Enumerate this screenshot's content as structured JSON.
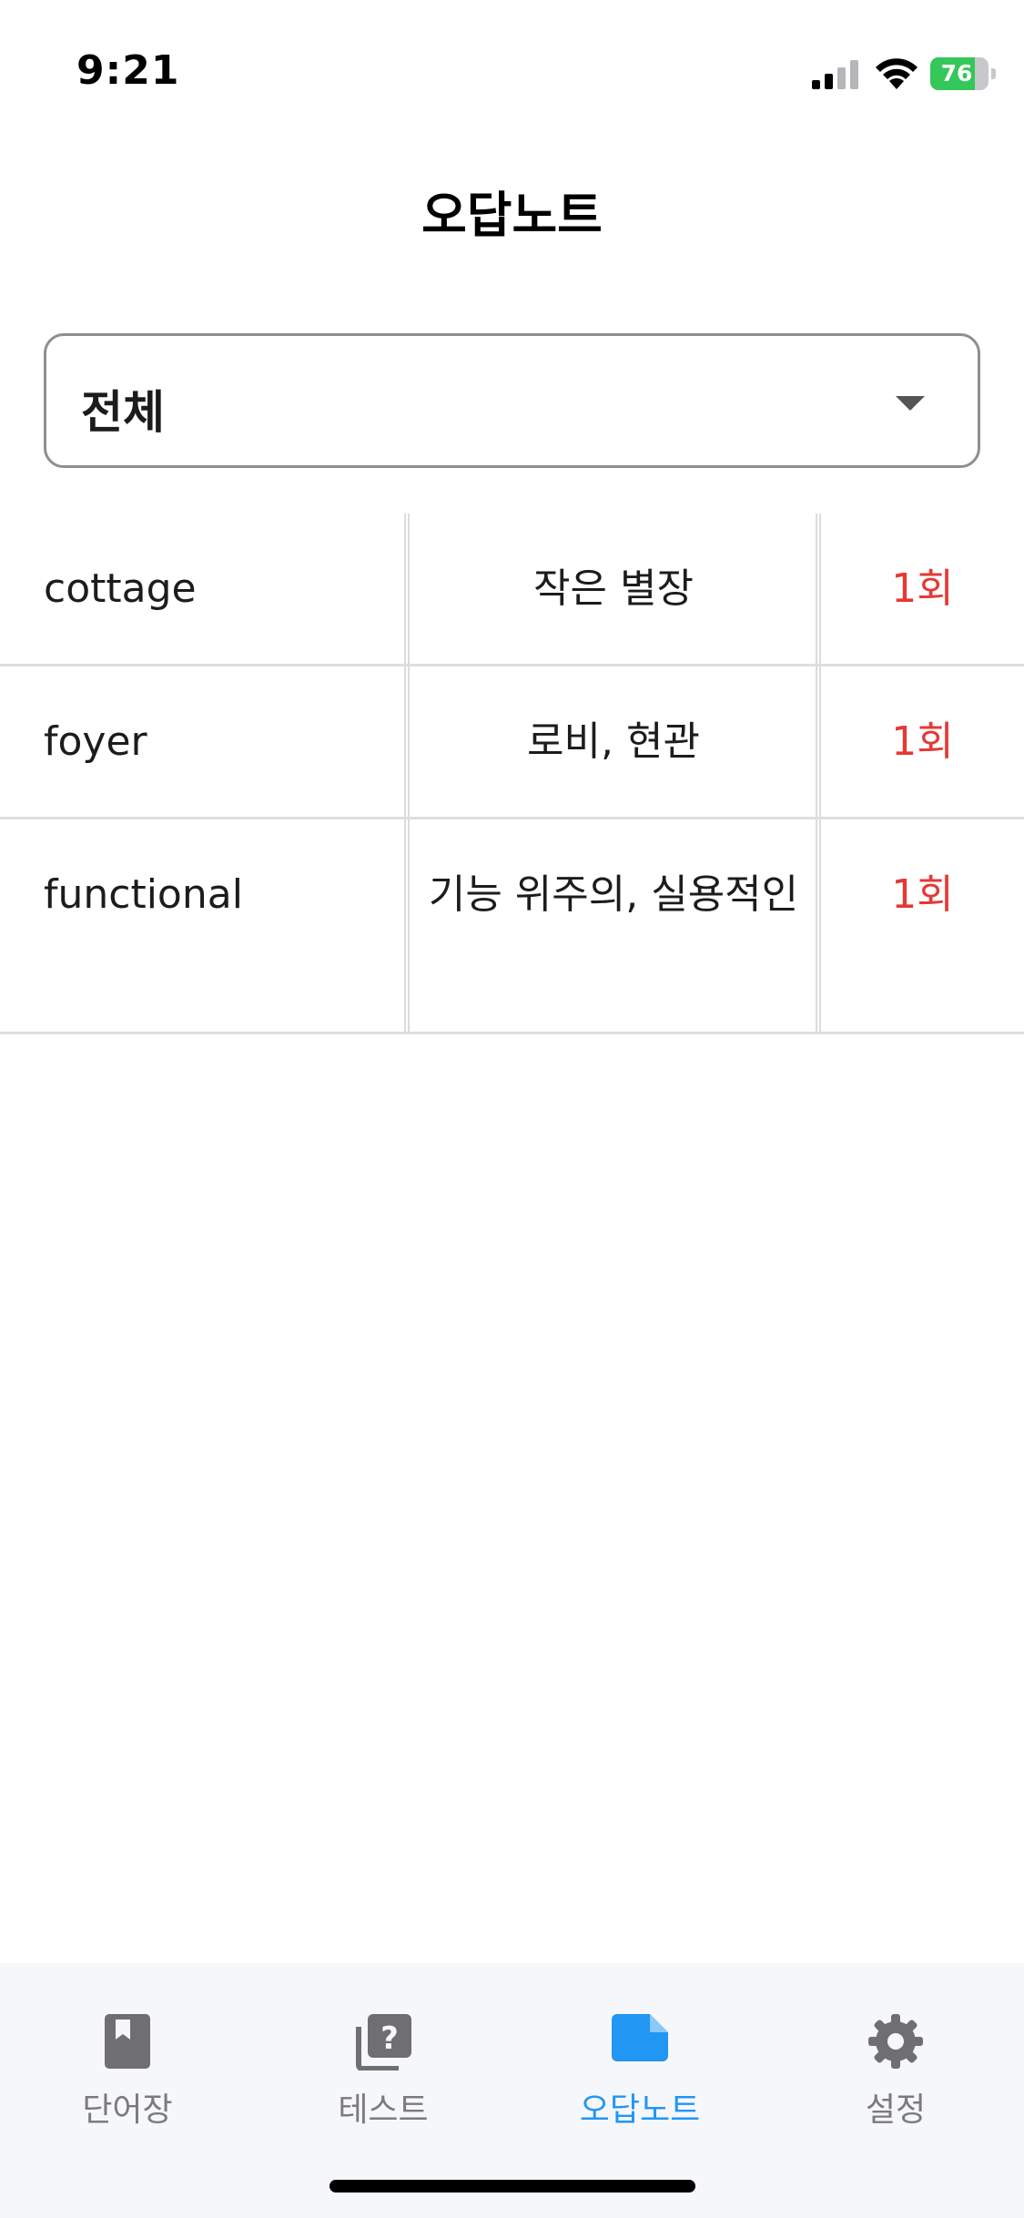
{
  "status_bar": {
    "time": "9:21",
    "battery_level": "76",
    "battery_fraction": 0.76
  },
  "header": {
    "title": "오답노트"
  },
  "filter": {
    "selected": "전체"
  },
  "rows": [
    {
      "word": "cottage",
      "meaning": "작은 별장",
      "count": "1회"
    },
    {
      "word": "foyer",
      "meaning": "로비, 현관",
      "count": "1회"
    },
    {
      "word": "functional",
      "meaning": "기능 위주의, 실용적인",
      "count": "1회"
    }
  ],
  "tabs": [
    {
      "label": "단어장",
      "icon": "book-bookmark-icon",
      "active": false
    },
    {
      "label": "테스트",
      "icon": "quiz-question-icon",
      "active": false
    },
    {
      "label": "오답노트",
      "icon": "note-icon",
      "active": true
    },
    {
      "label": "설정",
      "icon": "gear-icon",
      "active": false
    }
  ],
  "colors": {
    "accent": "#2196f3",
    "count": "#e53935",
    "inactive_tab": "#7a7a7f",
    "battery": "#34c759"
  }
}
